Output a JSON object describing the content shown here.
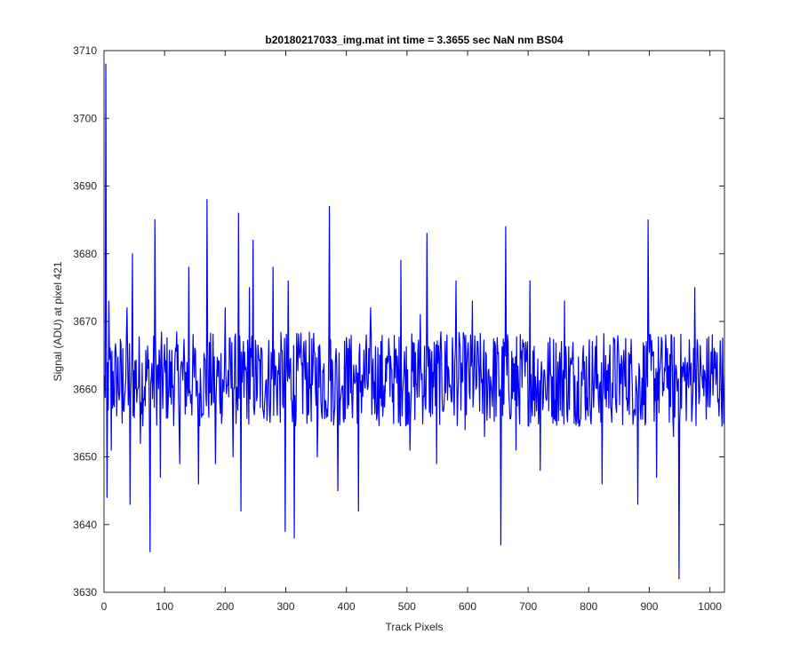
{
  "chart_data": {
    "type": "line",
    "title": "b20180217033_img.mat int time = 3.3655 sec  NaN nm BS04",
    "xlabel": "Track Pixels",
    "ylabel": "Signal (ADU) at pixel 421",
    "xlim": [
      0,
      1024
    ],
    "ylim": [
      3630,
      3710
    ],
    "xticks": [
      0,
      100,
      200,
      300,
      400,
      500,
      600,
      700,
      800,
      900,
      1000
    ],
    "yticks": [
      3630,
      3640,
      3650,
      3660,
      3670,
      3680,
      3690,
      3700,
      3710
    ],
    "grid": false,
    "series_color": "#0000ff",
    "series": [
      {
        "x_start": 1,
        "x_step": 1,
        "keypoints": [
          [
            1,
            3662
          ],
          [
            3,
            3708
          ],
          [
            5,
            3644
          ],
          [
            8,
            3673
          ],
          [
            12,
            3651
          ],
          [
            20,
            3665
          ],
          [
            30,
            3655
          ],
          [
            38,
            3672
          ],
          [
            43,
            3643
          ],
          [
            47,
            3680
          ],
          [
            60,
            3652
          ],
          [
            76,
            3636
          ],
          [
            84,
            3685
          ],
          [
            93,
            3647
          ],
          [
            110,
            3664
          ],
          [
            125,
            3649
          ],
          [
            140,
            3678
          ],
          [
            156,
            3646
          ],
          [
            170,
            3688
          ],
          [
            184,
            3649
          ],
          [
            200,
            3672
          ],
          [
            213,
            3650
          ],
          [
            222,
            3686
          ],
          [
            226,
            3642
          ],
          [
            240,
            3675
          ],
          [
            246,
            3682
          ],
          [
            262,
            3657
          ],
          [
            279,
            3678
          ],
          [
            299,
            3639
          ],
          [
            304,
            3676
          ],
          [
            314,
            3638
          ],
          [
            330,
            3667
          ],
          [
            352,
            3650
          ],
          [
            372,
            3687
          ],
          [
            386,
            3645
          ],
          [
            403,
            3666
          ],
          [
            420,
            3642
          ],
          [
            440,
            3672
          ],
          [
            460,
            3656
          ],
          [
            474,
            3663
          ],
          [
            490,
            3679
          ],
          [
            505,
            3651
          ],
          [
            522,
            3671
          ],
          [
            533,
            3683
          ],
          [
            549,
            3649
          ],
          [
            566,
            3668
          ],
          [
            581,
            3676
          ],
          [
            596,
            3654
          ],
          [
            608,
            3673
          ],
          [
            628,
            3653
          ],
          [
            645,
            3667
          ],
          [
            655,
            3637
          ],
          [
            663,
            3684
          ],
          [
            680,
            3651
          ],
          [
            703,
            3676
          ],
          [
            720,
            3648
          ],
          [
            738,
            3662
          ],
          [
            760,
            3673
          ],
          [
            782,
            3655
          ],
          [
            800,
            3664
          ],
          [
            822,
            3646
          ],
          [
            842,
            3667
          ],
          [
            865,
            3658
          ],
          [
            881,
            3643
          ],
          [
            898,
            3685
          ],
          [
            912,
            3647
          ],
          [
            930,
            3666
          ],
          [
            940,
            3653
          ],
          [
            949,
            3632
          ],
          [
            960,
            3662
          ],
          [
            975,
            3675
          ],
          [
            990,
            3659
          ],
          [
            1004,
            3668
          ],
          [
            1018,
            3664
          ],
          [
            1024,
            3662
          ]
        ],
        "noise_amplitude": 7
      }
    ]
  }
}
